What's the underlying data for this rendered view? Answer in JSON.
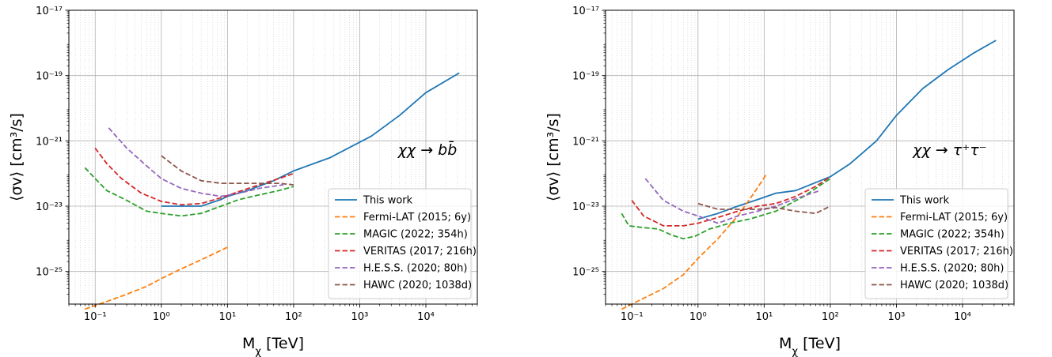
{
  "chart_data": [
    {
      "type": "line",
      "panel": "left",
      "x_scale": "log",
      "y_scale": "log",
      "xlim": [
        0.04,
        60000
      ],
      "ylim": [
        1e-26,
        1e-17
      ],
      "xlabel": "M_χ [TeV]",
      "ylabel": "⟨σv⟩ [cm³/s]",
      "x_ticks": [
        0.1,
        1,
        10,
        100,
        1000,
        10000
      ],
      "x_tick_labels": [
        "10⁻¹",
        "10⁰",
        "10¹",
        "10²",
        "10³",
        "10⁴"
      ],
      "y_ticks": [
        1e-25,
        1e-23,
        1e-21,
        1e-19,
        1e-17
      ],
      "y_tick_labels": [
        "10⁻²⁵",
        "10⁻²³",
        "10⁻²¹",
        "10⁻¹⁹",
        "10⁻¹⁷"
      ],
      "grid": true,
      "legend_position": "lower-right",
      "annotation": "χχ → bb̄",
      "series": [
        {
          "name": "This work",
          "color": "#1f77b4",
          "style": "solid",
          "x": [
            1,
            2,
            4,
            8,
            10,
            20,
            50,
            100,
            350,
            1500,
            4000,
            10000,
            32000
          ],
          "y": [
            1e-23,
            1e-23,
            1e-23,
            1.6e-23,
            2e-23,
            3e-23,
            6e-23,
            1.2e-22,
            3e-22,
            1.4e-21,
            6e-21,
            3e-20,
            1.2e-19
          ]
        },
        {
          "name": "Fermi-LAT (2015; 6y)",
          "color": "#ff7f0e",
          "style": "dashed",
          "x": [
            0.07,
            0.15,
            0.3,
            0.6,
            1,
            2,
            5,
            10
          ],
          "y": [
            7e-27,
            1.2e-26,
            2e-26,
            3.5e-26,
            6e-26,
            1.2e-25,
            2.8e-25,
            5.5e-25
          ]
        },
        {
          "name": "MAGIC (2022; 354h)",
          "color": "#2ca02c",
          "style": "dashed",
          "x": [
            0.07,
            0.1,
            0.15,
            0.3,
            0.6,
            1,
            2,
            4,
            8,
            15,
            30,
            60,
            100
          ],
          "y": [
            1.5e-22,
            7e-23,
            3e-23,
            1.5e-23,
            7e-24,
            6e-24,
            5e-24,
            6e-24,
            1e-23,
            1.6e-23,
            2.2e-23,
            3e-23,
            4e-23
          ]
        },
        {
          "name": "VERITAS (2017; 216h)",
          "color": "#d62728",
          "style": "dashed",
          "x": [
            0.1,
            0.15,
            0.25,
            0.5,
            1,
            2,
            4,
            8,
            15,
            30,
            60,
            100
          ],
          "y": [
            6e-22,
            2e-22,
            7e-23,
            2.5e-23,
            1.4e-23,
            1.1e-23,
            1.2e-23,
            1.8e-23,
            2.8e-23,
            4.5e-23,
            7e-23,
            1e-22
          ]
        },
        {
          "name": "H.E.S.S. (2020; 80h)",
          "color": "#9467bd",
          "style": "dashed",
          "x": [
            0.16,
            0.3,
            0.6,
            1,
            2,
            4,
            8,
            15,
            30,
            70
          ],
          "y": [
            2.5e-21,
            6e-22,
            1.7e-22,
            7e-23,
            3.5e-23,
            2.5e-23,
            2e-23,
            2.5e-23,
            3.5e-23,
            4.5e-23
          ]
        },
        {
          "name": "HAWC (2020; 1038d)",
          "color": "#8c564b",
          "style": "dashed",
          "x": [
            1,
            2,
            4,
            8,
            15,
            30,
            60,
            100
          ],
          "y": [
            3.5e-22,
            1.2e-22,
            6e-23,
            5e-23,
            5e-23,
            5e-23,
            5e-23,
            4.5e-23
          ]
        }
      ]
    },
    {
      "type": "line",
      "panel": "right",
      "x_scale": "log",
      "y_scale": "log",
      "xlim": [
        0.04,
        60000
      ],
      "ylim": [
        1e-26,
        1e-17
      ],
      "xlabel": "M_χ [TeV]",
      "ylabel": "⟨σv⟩ [cm³/s]",
      "x_ticks": [
        0.1,
        1,
        10,
        100,
        1000,
        10000
      ],
      "x_tick_labels": [
        "10⁻¹",
        "10⁰",
        "10¹",
        "10²",
        "10³",
        "10⁴"
      ],
      "y_ticks": [
        1e-25,
        1e-23,
        1e-21,
        1e-19,
        1e-17
      ],
      "y_tick_labels": [
        "10⁻²⁵",
        "10⁻²³",
        "10⁻²¹",
        "10⁻¹⁹",
        "10⁻¹⁷"
      ],
      "grid": true,
      "legend_position": "lower-right",
      "annotation": "χχ → τ⁺τ⁻",
      "series": [
        {
          "name": "This work",
          "color": "#1f77b4",
          "style": "solid",
          "x": [
            1,
            2,
            4,
            8,
            15,
            30,
            100,
            200,
            500,
            1000,
            2500,
            6000,
            15000,
            32000
          ],
          "y": [
            4e-24,
            6e-24,
            1e-23,
            1.6e-23,
            2.5e-23,
            3e-23,
            8e-23,
            2e-22,
            1e-21,
            6e-21,
            4e-20,
            1.5e-19,
            5e-19,
            1.2e-18
          ]
        },
        {
          "name": "Fermi-LAT (2015; 6y)",
          "color": "#ff7f0e",
          "style": "dashed",
          "x": [
            0.07,
            0.15,
            0.3,
            0.6,
            1,
            2,
            4,
            7,
            11
          ],
          "y": [
            7e-27,
            1.5e-26,
            3e-26,
            8e-26,
            2.5e-25,
            1e-24,
            5e-24,
            2.5e-23,
            1e-22
          ]
        },
        {
          "name": "MAGIC (2022; 354h)",
          "color": "#2ca02c",
          "style": "dashed",
          "x": [
            0.07,
            0.09,
            0.15,
            0.25,
            0.4,
            0.6,
            0.9,
            1.5,
            3,
            6,
            15,
            40,
            100
          ],
          "y": [
            6e-24,
            2.5e-24,
            2.2e-24,
            2e-24,
            1.3e-24,
            1e-24,
            1.2e-24,
            2e-24,
            3e-24,
            4e-24,
            7e-24,
            2e-23,
            7e-23
          ]
        },
        {
          "name": "VERITAS (2017; 216h)",
          "color": "#d62728",
          "style": "dashed",
          "x": [
            0.1,
            0.15,
            0.3,
            0.6,
            1,
            2,
            4,
            8,
            15,
            30,
            60,
            100
          ],
          "y": [
            1.5e-23,
            5e-24,
            2.5e-24,
            2.5e-24,
            3e-24,
            4.5e-24,
            7e-24,
            1e-23,
            1.2e-23,
            2e-23,
            4e-23,
            8e-23
          ]
        },
        {
          "name": "H.E.S.S. (2020; 80h)",
          "color": "#9467bd",
          "style": "dashed",
          "x": [
            0.16,
            0.3,
            0.6,
            1,
            2,
            4,
            8,
            15,
            30,
            70
          ],
          "y": [
            7e-23,
            1.5e-23,
            7e-24,
            5e-24,
            3e-24,
            5e-24,
            7e-24,
            1e-23,
            1.7e-23,
            3e-23
          ]
        },
        {
          "name": "HAWC (2020; 1038d)",
          "color": "#8c564b",
          "style": "dashed",
          "x": [
            1,
            2,
            4,
            8,
            15,
            30,
            60,
            100
          ],
          "y": [
            1.2e-23,
            8e-24,
            8e-24,
            8e-24,
            9e-24,
            7e-24,
            6e-24,
            1e-23
          ]
        }
      ]
    }
  ]
}
